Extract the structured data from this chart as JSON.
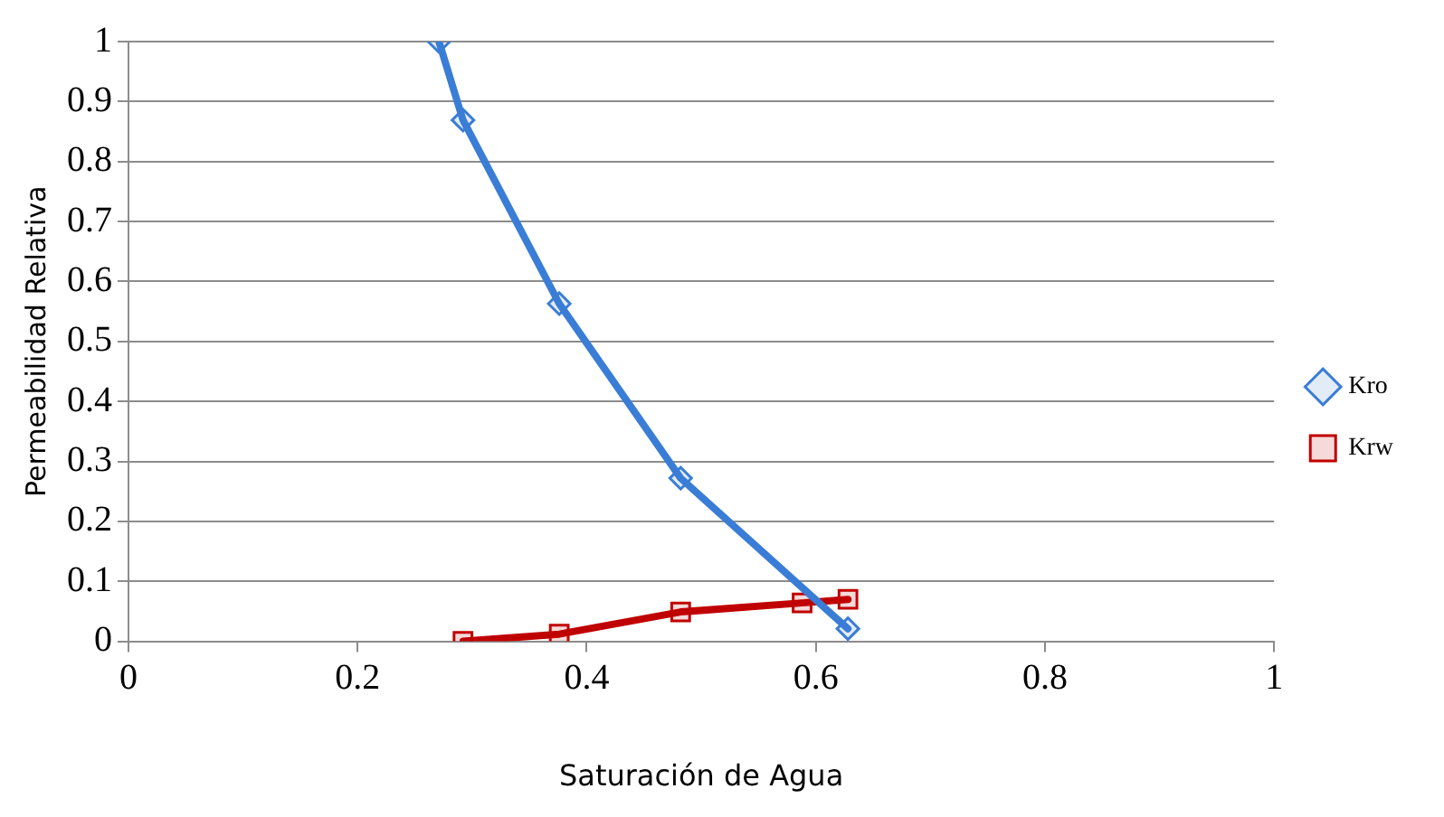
{
  "chart_data": {
    "type": "line",
    "xlabel": "Saturación de Agua",
    "ylabel": "Permeabilidad Relativa",
    "series": [
      {
        "name": "Kro",
        "color": "#3a7dd6",
        "marker": "diamond",
        "x": [
          0.271,
          0.292,
          0.376,
          0.482,
          0.628
        ],
        "values": [
          1.0,
          0.869,
          0.563,
          0.272,
          0.021
        ]
      },
      {
        "name": "Krw",
        "color": "#c00000",
        "marker": "square",
        "x": [
          0.292,
          0.376,
          0.482,
          0.588,
          0.628
        ],
        "values": [
          0,
          0.012,
          0.049,
          0.064,
          0.07
        ]
      }
    ],
    "xlim": [
      0,
      1
    ],
    "xticks": [
      0,
      0.2,
      0.4,
      0.6,
      0.8,
      1
    ],
    "ylim": [
      0,
      1
    ],
    "yticks": [
      0,
      0.1,
      0.2,
      0.3,
      0.4,
      0.5,
      0.6,
      0.7,
      0.8,
      0.9,
      1
    ],
    "grid": "y",
    "legend": "right"
  }
}
